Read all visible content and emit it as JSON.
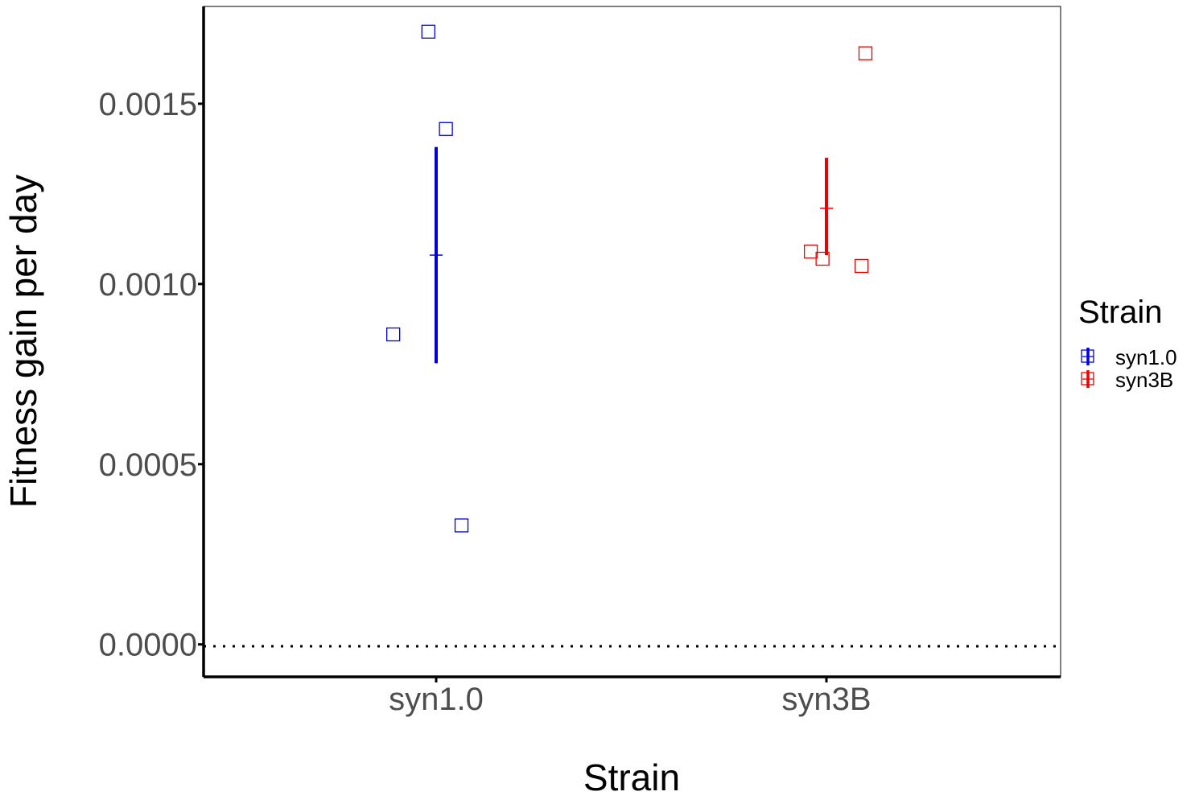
{
  "chart_data": {
    "type": "scatter",
    "title": "",
    "xlabel": "Strain",
    "ylabel": "Fitness gain per day",
    "categories": [
      "syn1.0",
      "syn3B"
    ],
    "ylim": [
      -9e-05,
      0.00177
    ],
    "yticks": [
      "0.0000",
      "0.0005",
      "0.0010",
      "0.0015"
    ],
    "ytick_values": [
      0,
      0.0005,
      0.001,
      0.0015
    ],
    "reference_line": {
      "y": 0,
      "style": "dotted"
    },
    "legend": {
      "title": "Strain",
      "position": "right"
    },
    "series": [
      {
        "name": "syn1.0",
        "color": "#0000dd",
        "points": [
          {
            "x": -0.11,
            "y": 0.00086
          },
          {
            "x": -0.02,
            "y": 0.0017
          },
          {
            "x": 0.025,
            "y": 0.00143
          },
          {
            "x": 0.065,
            "y": 0.00033
          }
        ],
        "mean": 0.00108,
        "error": [
          0.00078,
          0.00138
        ]
      },
      {
        "name": "syn3B",
        "color": "#ee0000",
        "points": [
          {
            "x": -0.04,
            "y": 0.00109
          },
          {
            "x": -0.01,
            "y": 0.00107
          },
          {
            "x": 0.09,
            "y": 0.00105
          },
          {
            "x": 0.1,
            "y": 0.00164
          }
        ],
        "mean": 0.00121,
        "error": [
          0.00108,
          0.00135
        ]
      }
    ]
  }
}
